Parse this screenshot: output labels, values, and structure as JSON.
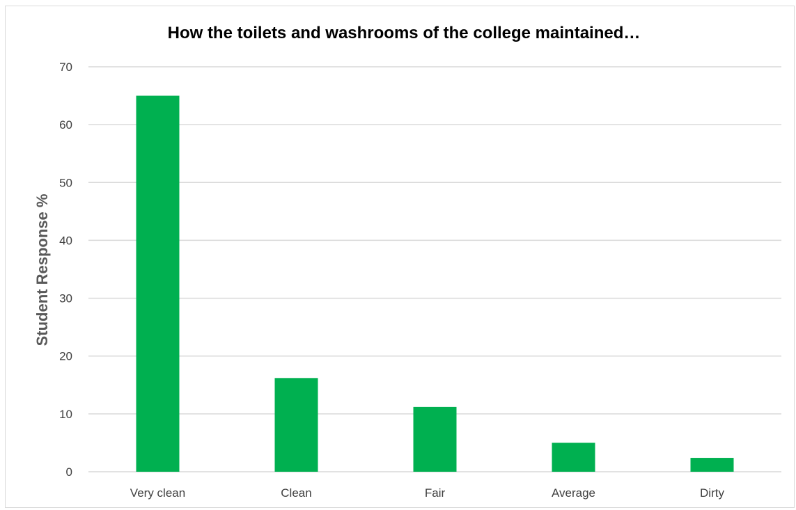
{
  "chart_data": {
    "type": "bar",
    "title": "How the toilets and washrooms of the college maintained…",
    "xlabel": "",
    "ylabel": "Student Response %",
    "categories": [
      "Very clean",
      "Clean",
      "Fair",
      "Average",
      "Dirty"
    ],
    "values": [
      65,
      16.2,
      11.2,
      5,
      2.4
    ],
    "ylim": [
      0,
      70
    ],
    "yticks": [
      "0",
      "10",
      "20",
      "30",
      "40",
      "50",
      "60",
      "70"
    ],
    "grid": true,
    "legend": "none",
    "colors": {
      "bar": "#00b050",
      "grid": "#d9d9d9"
    }
  }
}
